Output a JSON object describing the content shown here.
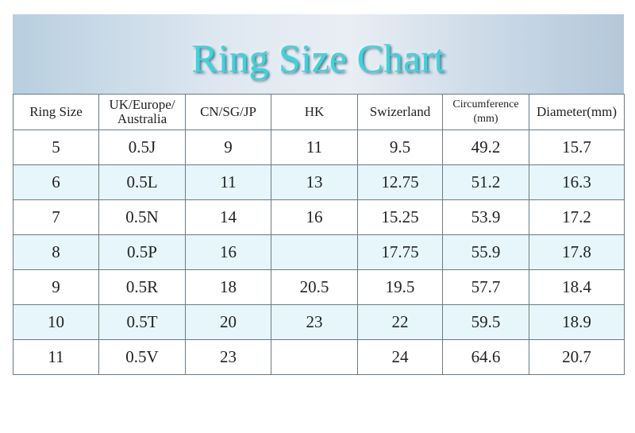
{
  "header": {
    "title": "Ring Size Chart"
  },
  "table": {
    "columns": [
      "Ring Size",
      "UK/Europe/ Australia",
      "CN/SG/JP",
      "HK",
      "Swizerland",
      "Circumference (mm)",
      "Diameter(mm)"
    ],
    "rows": [
      [
        "5",
        "0.5J",
        "9",
        "11",
        "9.5",
        "49.2",
        "15.7"
      ],
      [
        "6",
        "0.5L",
        "11",
        "13",
        "12.75",
        "51.2",
        "16.3"
      ],
      [
        "7",
        "0.5N",
        "14",
        "16",
        "15.25",
        "53.9",
        "17.2"
      ],
      [
        "8",
        "0.5P",
        "16",
        null,
        "17.75",
        "55.9",
        "17.8"
      ],
      [
        "9",
        "0.5R",
        "18",
        "20.5",
        "19.5",
        "57.7",
        "18.4"
      ],
      [
        "10",
        "0.5T",
        "20",
        "23",
        "22",
        "59.5",
        "18.9"
      ],
      [
        "11",
        "0.5V",
        "23",
        null,
        "24",
        "64.6",
        "20.7"
      ]
    ]
  }
}
